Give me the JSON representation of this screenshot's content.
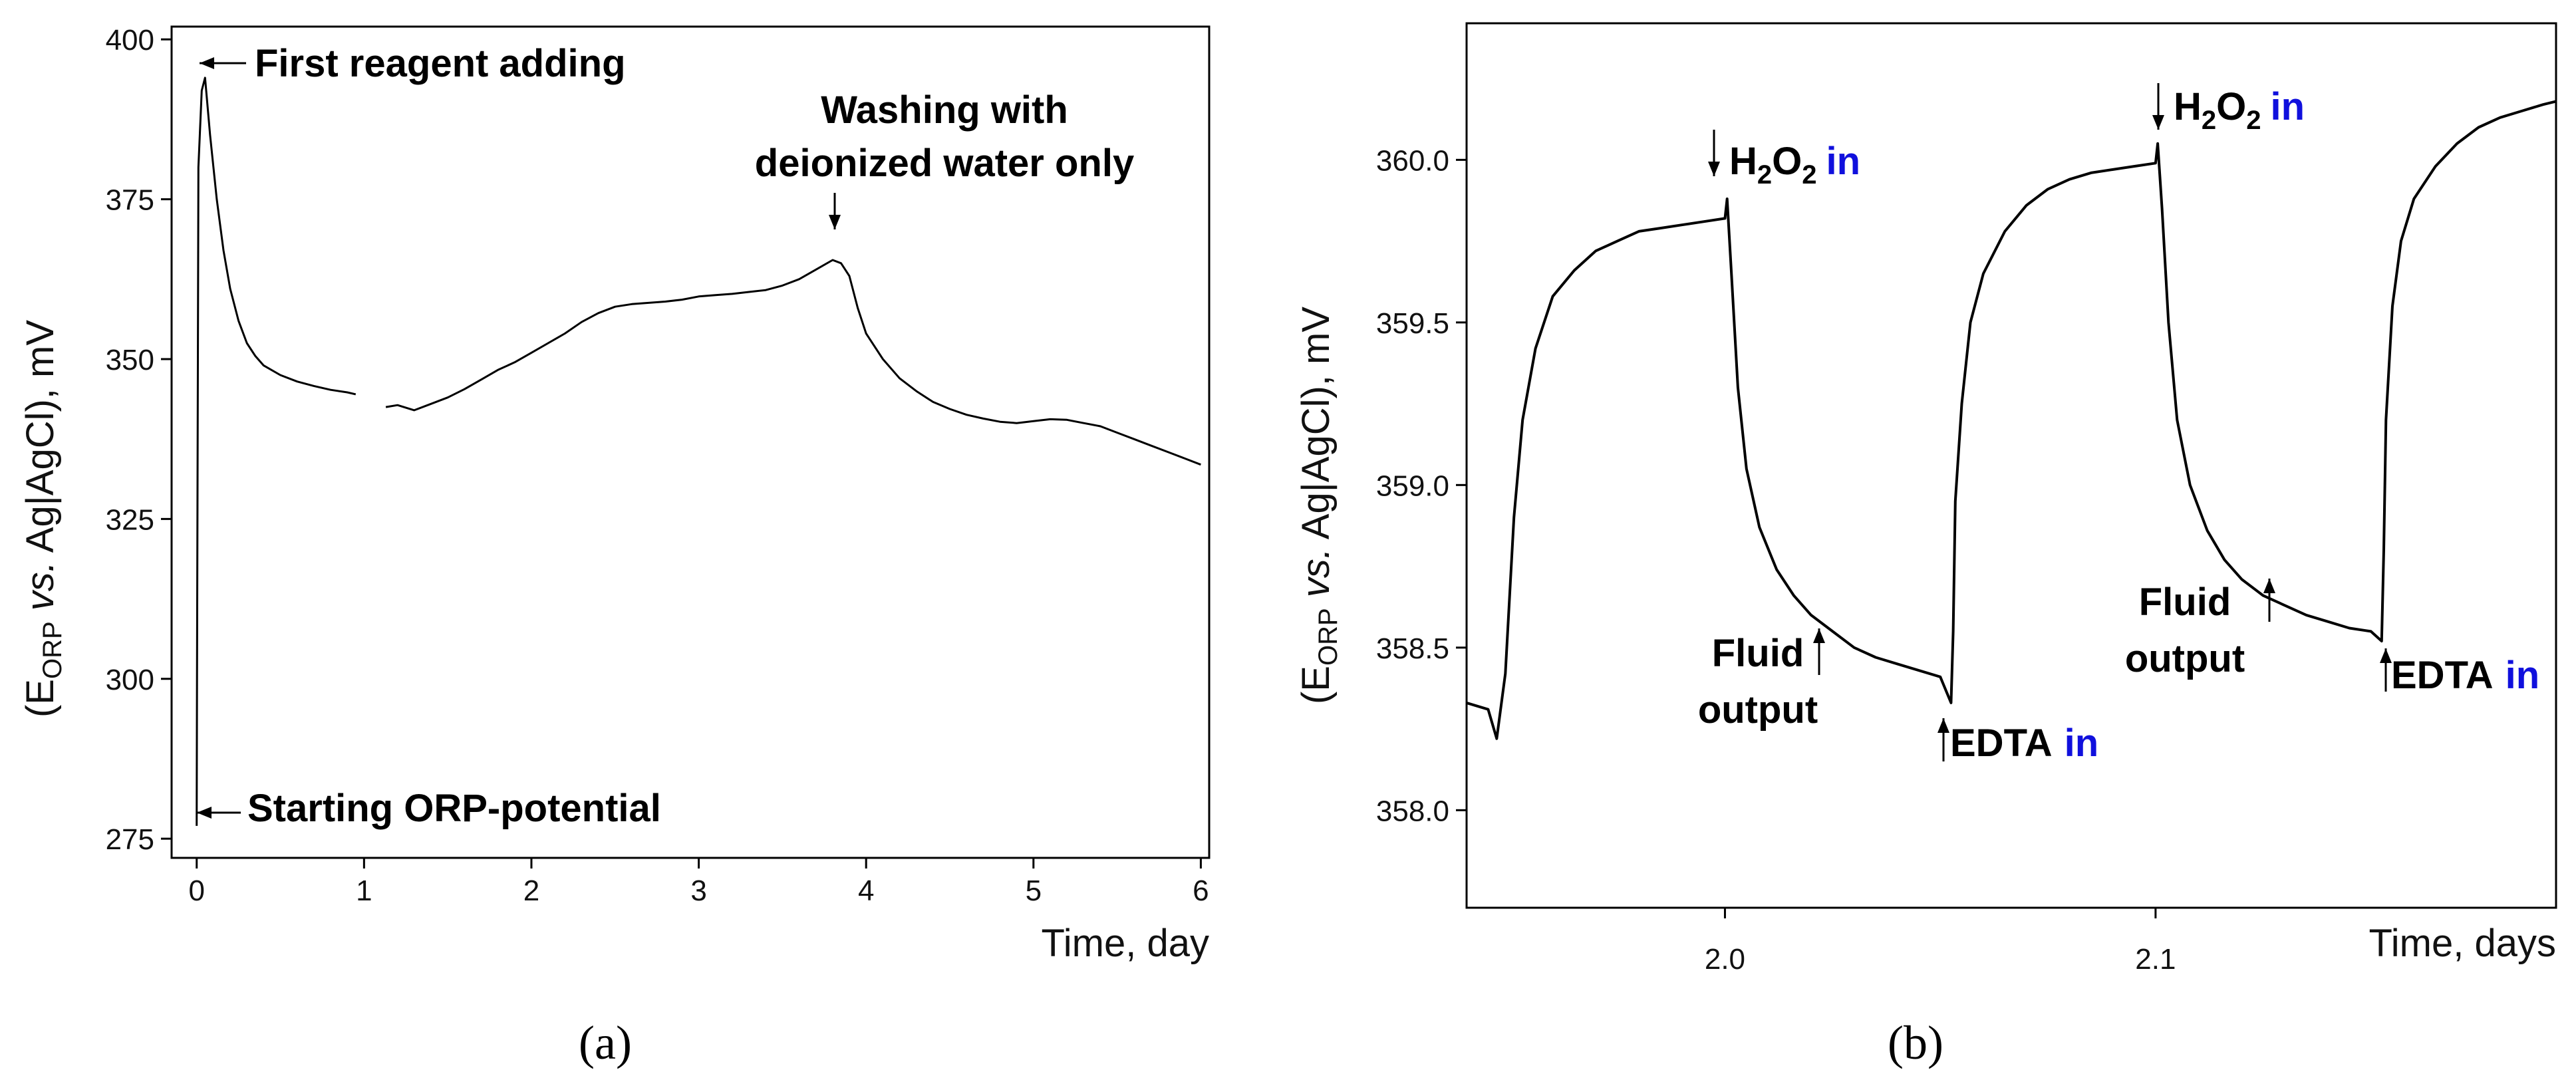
{
  "figure_labels": {
    "a": "(a)",
    "b": "(b)"
  },
  "chart_data": [
    {
      "id": "a",
      "type": "line",
      "title": "",
      "xlabel": "Time, day",
      "ylabel_parts": {
        "open": "(E",
        "sub": "ORP",
        "italic": " vs.",
        "rest": " Ag|AgCl), mV"
      },
      "xlim": [
        -0.15,
        6.05
      ],
      "ylim": [
        272,
        402
      ],
      "xticks": [
        0,
        1,
        2,
        3,
        4,
        5,
        6
      ],
      "yticks": [
        275,
        300,
        325,
        350,
        375,
        400
      ],
      "line_color": "#000000",
      "annotations": {
        "first_reagent": "First reagent adding",
        "starting": "Starting ORP-potential",
        "washing_line1": "Washing with",
        "washing_line2": "deionized water only"
      },
      "series": [
        {
          "name": "ORP potential (segment 1)",
          "x": [
            0.0,
            0.002,
            0.01,
            0.03,
            0.05,
            0.08,
            0.12,
            0.16,
            0.2,
            0.25,
            0.3,
            0.35,
            0.4,
            0.5,
            0.6,
            0.7,
            0.8,
            0.9,
            0.95
          ],
          "y": [
            277,
            300,
            380,
            392,
            394,
            385,
            375,
            367,
            361,
            356,
            352.5,
            350.5,
            349,
            347.5,
            346.5,
            345.8,
            345.2,
            344.8,
            344.5
          ]
        },
        {
          "name": "ORP potential (segment 2)",
          "x": [
            1.13,
            1.2,
            1.3,
            1.4,
            1.5,
            1.6,
            1.7,
            1.8,
            1.9,
            2.0,
            2.1,
            2.2,
            2.3,
            2.4,
            2.5,
            2.6,
            2.7,
            2.8,
            2.9,
            3.0,
            3.1,
            3.2,
            3.3,
            3.4,
            3.5,
            3.6,
            3.7,
            3.8,
            3.85,
            3.9,
            3.95,
            4.0,
            4.1,
            4.2,
            4.3,
            4.4,
            4.5,
            4.6,
            4.7,
            4.8,
            4.9,
            5.0,
            5.1,
            5.2,
            5.3,
            5.4,
            5.5,
            5.6,
            5.7,
            5.8,
            5.9,
            6.0
          ],
          "y": [
            342.5,
            342.8,
            342.0,
            343.0,
            344.0,
            345.3,
            346.8,
            348.3,
            349.5,
            351.0,
            352.5,
            354.0,
            355.8,
            357.2,
            358.2,
            358.6,
            358.8,
            359.0,
            359.3,
            359.8,
            360.0,
            360.2,
            360.5,
            360.8,
            361.5,
            362.5,
            364.0,
            365.5,
            365.0,
            363.0,
            358.0,
            354.0,
            350.0,
            347.0,
            345.0,
            343.3,
            342.2,
            341.3,
            340.7,
            340.2,
            340.0,
            340.3,
            340.6,
            340.5,
            340.0,
            339.5,
            338.5,
            337.5,
            336.5,
            335.5,
            334.5,
            333.5
          ]
        }
      ]
    },
    {
      "id": "b",
      "type": "line",
      "title": "",
      "xlabel": "Time, days",
      "ylabel_parts": {
        "open": "(E",
        "sub": "ORP",
        "italic": " vs.",
        "rest": " Ag|AgCl), mV"
      },
      "xlim": [
        1.94,
        2.193
      ],
      "ylim": [
        357.7,
        360.42
      ],
      "xticks": [
        2.0,
        2.1
      ],
      "xtick_labels": [
        "2.0",
        "2.1"
      ],
      "yticks": [
        358.0,
        358.5,
        359.0,
        359.5,
        360.0
      ],
      "ytick_labels": [
        "358.0",
        "358.5",
        "359.0",
        "359.5",
        "360.0"
      ],
      "line_color": "#000000",
      "accent_colors": {
        "blue": "#1010dd",
        "red": "#ee1111"
      },
      "annotations": {
        "h2o2_1": {
          "main": "H",
          "sub1": "2",
          "mid": "O",
          "sub2": "2",
          "colored": "in"
        },
        "h2o2_2": {
          "main": "H",
          "sub1": "2",
          "mid": "O",
          "sub2": "2",
          "colored": "in"
        },
        "edta_1": {
          "main": "EDTA",
          "colored": "in"
        },
        "edta_2": {
          "main": "EDTA",
          "colored": "in"
        },
        "fluid_1": {
          "line1": "Fluid",
          "line2": "output"
        },
        "fluid_2": {
          "line1": "Fluid",
          "line2": "output"
        }
      },
      "series": [
        {
          "name": "ORP potential",
          "x": [
            1.94,
            1.945,
            1.947,
            1.949,
            1.951,
            1.953,
            1.956,
            1.96,
            1.965,
            1.97,
            1.975,
            1.98,
            1.985,
            1.99,
            1.995,
            2.0,
            2.0005,
            2.0015,
            2.003,
            2.005,
            2.008,
            2.012,
            2.016,
            2.02,
            2.025,
            2.03,
            2.035,
            2.04,
            2.045,
            2.05,
            2.0525,
            2.053,
            2.0535,
            2.055,
            2.057,
            2.06,
            2.065,
            2.07,
            2.075,
            2.08,
            2.085,
            2.09,
            2.095,
            2.1,
            2.1005,
            2.1015,
            2.103,
            2.105,
            2.108,
            2.112,
            2.116,
            2.12,
            2.125,
            2.13,
            2.135,
            2.14,
            2.145,
            2.15,
            2.1525,
            2.153,
            2.1535,
            2.155,
            2.157,
            2.16,
            2.165,
            2.17,
            2.175,
            2.18,
            2.185,
            2.19,
            2.193
          ],
          "y": [
            358.33,
            358.31,
            358.22,
            358.42,
            358.9,
            359.2,
            359.42,
            359.58,
            359.66,
            359.72,
            359.75,
            359.78,
            359.79,
            359.8,
            359.81,
            359.82,
            359.88,
            359.65,
            359.3,
            359.05,
            358.87,
            358.74,
            358.66,
            358.6,
            358.55,
            358.5,
            358.47,
            358.45,
            358.43,
            358.41,
            358.33,
            358.55,
            358.95,
            359.25,
            359.5,
            359.65,
            359.78,
            359.86,
            359.91,
            359.94,
            359.96,
            359.97,
            359.98,
            359.99,
            360.05,
            359.85,
            359.5,
            359.2,
            359.0,
            358.86,
            358.77,
            358.71,
            358.66,
            358.63,
            358.6,
            358.58,
            358.56,
            358.55,
            358.52,
            358.8,
            359.2,
            359.55,
            359.75,
            359.88,
            359.98,
            360.05,
            360.1,
            360.13,
            360.15,
            360.17,
            360.18
          ]
        }
      ]
    }
  ]
}
